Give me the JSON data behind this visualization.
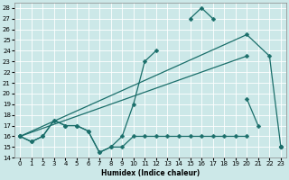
{
  "xlabel": "Humidex (Indice chaleur)",
  "xlim": [
    -0.5,
    23.5
  ],
  "ylim": [
    14,
    28.5
  ],
  "yticks": [
    14,
    15,
    16,
    17,
    18,
    19,
    20,
    21,
    22,
    23,
    24,
    25,
    26,
    27,
    28
  ],
  "xticks": [
    0,
    1,
    2,
    3,
    4,
    5,
    6,
    7,
    8,
    9,
    10,
    11,
    12,
    13,
    14,
    15,
    16,
    17,
    18,
    19,
    20,
    21,
    22,
    23
  ],
  "bg_color": "#cce8e8",
  "grid_color": "#b0d4d4",
  "line_color": "#1a6e6a",
  "series": [
    {
      "x": [
        0,
        1,
        2,
        3,
        4,
        5,
        6,
        7,
        8,
        9,
        10,
        11,
        12,
        13,
        14,
        15,
        16,
        17,
        18,
        19,
        20,
        21,
        22,
        23
      ],
      "y": [
        16,
        15.5,
        16,
        17.5,
        17,
        17,
        16.5,
        14.5,
        15,
        15,
        16,
        16,
        16,
        16,
        16,
        16,
        16,
        16,
        16,
        16,
        16,
        null,
        null,
        15
      ]
    },
    {
      "x": [
        0,
        1,
        2,
        3,
        4,
        5,
        6,
        7,
        8,
        9,
        10,
        11,
        12,
        13,
        14,
        15,
        16,
        17,
        18,
        19,
        20,
        21,
        22,
        23
      ],
      "y": [
        16,
        15.5,
        16,
        17.5,
        17,
        17,
        16.5,
        14.5,
        15,
        16,
        19,
        23,
        24,
        null,
        null,
        27,
        28,
        27,
        null,
        null,
        19.5,
        17,
        null,
        15
      ]
    },
    {
      "x": [
        0,
        20,
        22,
        23
      ],
      "y": [
        16,
        25.5,
        23.5,
        15
      ]
    },
    {
      "x": [
        0,
        3,
        10,
        19,
        20
      ],
      "y": [
        16,
        17.5,
        20,
        23.5,
        19.5
      ]
    }
  ]
}
